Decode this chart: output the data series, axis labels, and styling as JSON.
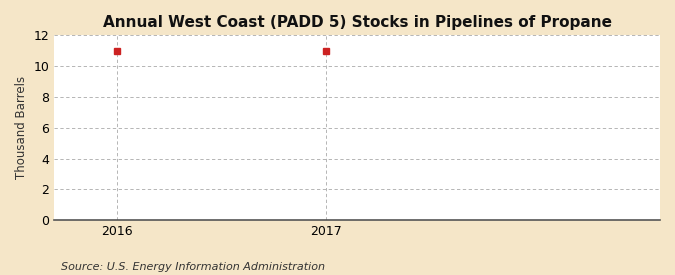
{
  "title": "Annual West Coast (PADD 5) Stocks in Pipelines of Propane",
  "ylabel": "Thousand Barrels",
  "source": "Source: U.S. Energy Information Administration",
  "x_values": [
    2016,
    2017
  ],
  "y_values": [
    11,
    11
  ],
  "xlim": [
    2015.7,
    2018.6
  ],
  "ylim": [
    0,
    12
  ],
  "yticks": [
    0,
    2,
    4,
    6,
    8,
    10,
    12
  ],
  "xticks": [
    2016,
    2017
  ],
  "marker_color": "#cc2222",
  "marker": "s",
  "marker_size": 4,
  "fig_bg_color": "#f5e6c8",
  "plot_bg_color": "#ffffff",
  "grid_color": "#aaaaaa",
  "title_fontsize": 11,
  "label_fontsize": 8.5,
  "tick_fontsize": 9,
  "source_fontsize": 8
}
